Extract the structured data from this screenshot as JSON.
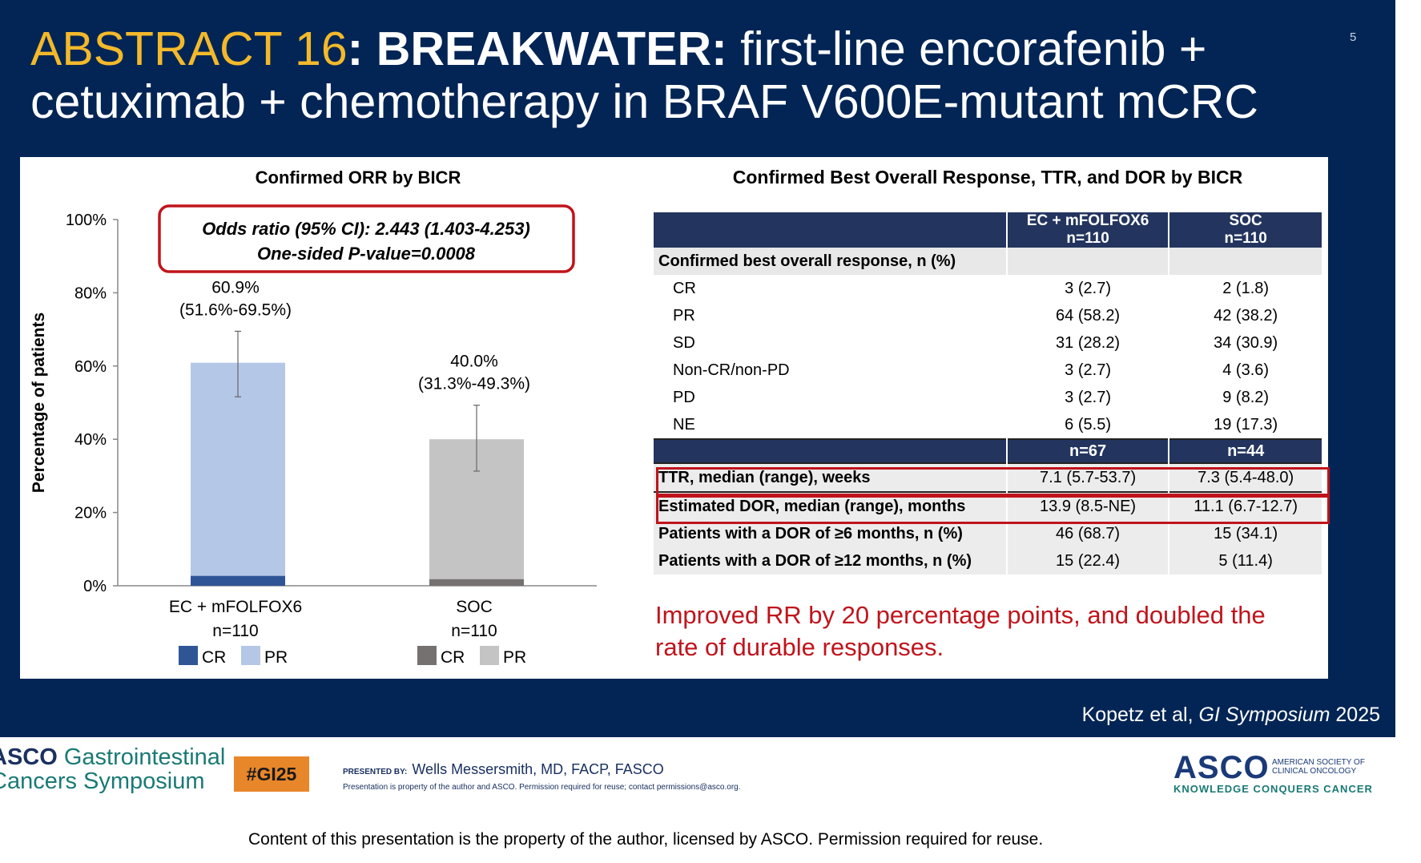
{
  "slide": {
    "title_abstract": "ABSTRACT 16",
    "title_sep": ": ",
    "title_bold": "BREAKWATER:",
    "title_rest": " first-line encorafenib + cetuximab + chemotherapy in BRAF V600E-mutant mCRC",
    "slide_number": "5",
    "citation_authors": "Kopetz et al, ",
    "citation_venue": "GI Symposium",
    "citation_year": " 2025"
  },
  "chart_data": {
    "type": "bar",
    "stacked": true,
    "title": "Confirmed ORR by BICR",
    "ylabel": "Percentage of patients",
    "ylim": [
      0,
      100
    ],
    "yticks": [
      "0%",
      "20%",
      "40%",
      "60%",
      "80%",
      "100%"
    ],
    "grid": false,
    "categories": [
      {
        "line1": "EC + mFOLFOX6",
        "line2": "n=110",
        "value": 60.9,
        "cr": 2.7,
        "pr": 58.2,
        "ci_low": 51.6,
        "ci_high": 69.5,
        "label": "60.9%",
        "ci_label": "(51.6%-69.5%)",
        "cr_color": "#2f5597",
        "pr_color": "#b4c7e7"
      },
      {
        "line1": "SOC",
        "line2": "n=110",
        "value": 40.0,
        "cr": 1.8,
        "pr": 38.2,
        "ci_low": 31.3,
        "ci_high": 49.3,
        "label": "40.0%",
        "ci_label": "(31.3%-49.3%)",
        "cr_color": "#767171",
        "pr_color": "#c4c4c4"
      }
    ],
    "legend": [
      {
        "name": "CR"
      },
      {
        "name": "PR"
      }
    ],
    "annotation_line1": "Odds ratio (95% CI): 2.443 (1.403-4.253)",
    "annotation_line2": "One-sided P-value=0.0008"
  },
  "table": {
    "title": "Confirmed Best Overall Response, TTR, and DOR by BICR",
    "col1_line1": "EC + mFOLFOX6",
    "col1_line2": "n=110",
    "col2_line1": "SOC",
    "col2_line2": "n=110",
    "section": "Confirmed best overall response, n (%)",
    "rows": [
      {
        "label": "CR",
        "a": "3 (2.7)",
        "b": "2 (1.8)"
      },
      {
        "label": "PR",
        "a": "64 (58.2)",
        "b": "42 (38.2)"
      },
      {
        "label": "SD",
        "a": "31 (28.2)",
        "b": "34 (30.9)"
      },
      {
        "label": "Non-CR/non-PD",
        "a": "3 (2.7)",
        "b": "4 (3.6)"
      },
      {
        "label": "PD",
        "a": "3 (2.7)",
        "b": "9 (8.2)"
      },
      {
        "label": "NE",
        "a": "6 (5.5)",
        "b": "19 (17.3)"
      }
    ],
    "n_a": "n=67",
    "n_b": "n=44",
    "rows2": [
      {
        "label": "TTR, median (range), weeks",
        "a": "7.1 (5.7-53.7)",
        "b": "7.3 (5.4-48.0)"
      },
      {
        "label": "Estimated DOR, median (range), months",
        "a": "13.9 (8.5-NE)",
        "b": "11.1 (6.7-12.7)"
      },
      {
        "label": "Patients with a DOR of ≥6 months, n (%)",
        "a": "46 (68.7)",
        "b": "15 (34.1)"
      },
      {
        "label": "Patients with a DOR of ≥12 months, n (%)",
        "a": "15 (22.4)",
        "b": "5 (11.4)"
      }
    ],
    "conclusion": "Improved RR by 20 percentage points, and doubled the rate of durable responses."
  },
  "footer": {
    "asco_gi_1": "ASCO",
    "asco_gi_2": " Gastrointestinal",
    "asco_gi_3": "Cancers Symposium",
    "hashtag": "#GI25",
    "presented_by": "PRESENTED BY:",
    "presenter": "Wells Messersmith, MD, FACP, FASCO",
    "property_note": "Presentation is property of the author and ASCO. Permission required for reuse; contact permissions@asco.org.",
    "asco_logo": "ASCO",
    "asco_society_1": "AMERICAN SOCIETY OF",
    "asco_society_2": "CLINICAL ONCOLOGY",
    "tagline": "KNOWLEDGE CONQUERS CANCER",
    "copyright": "Content of this presentation is the property of the author, licensed by ASCO. Permission required for reuse."
  },
  "colors": {
    "background": "#032555",
    "title_accent": "#f3b92b",
    "highlight_red": "#c0141c",
    "table_header": "#23355e"
  }
}
